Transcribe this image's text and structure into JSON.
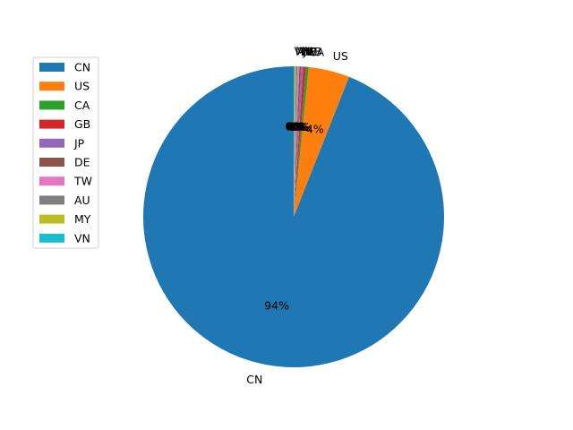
{
  "chart_data": {
    "type": "pie",
    "title": "",
    "start_angle_deg": 90,
    "direction": "counterclockwise",
    "legend_position": "upper-left",
    "series": [
      {
        "category": "CN",
        "value": 94.0,
        "pct_label": "94%",
        "color": "#1f77b4",
        "show_label": true
      },
      {
        "category": "US",
        "value": 4.4,
        "pct_label": "4%",
        "color": "#ff7f0e",
        "show_label": true
      },
      {
        "category": "CA",
        "value": 0.3,
        "pct_label": "0%",
        "color": "#2ca02c",
        "show_label": true
      },
      {
        "category": "GB",
        "value": 0.3,
        "pct_label": "0%",
        "color": "#d62728",
        "show_label": true
      },
      {
        "category": "JP",
        "value": 0.2,
        "pct_label": "0%",
        "color": "#9467bd",
        "show_label": true
      },
      {
        "category": "DE",
        "value": 0.2,
        "pct_label": "0%",
        "color": "#8c564b",
        "show_label": true
      },
      {
        "category": "TW",
        "value": 0.2,
        "pct_label": "0%",
        "color": "#e377c2",
        "show_label": true
      },
      {
        "category": "AU",
        "value": 0.15,
        "pct_label": "0%",
        "color": "#7f7f7f",
        "show_label": true
      },
      {
        "category": "MY",
        "value": 0.15,
        "pct_label": "0%",
        "color": "#bcbd22",
        "show_label": true
      },
      {
        "category": "VN",
        "value": 0.1,
        "pct_label": "0%",
        "color": "#17becf",
        "show_label": true
      }
    ]
  }
}
